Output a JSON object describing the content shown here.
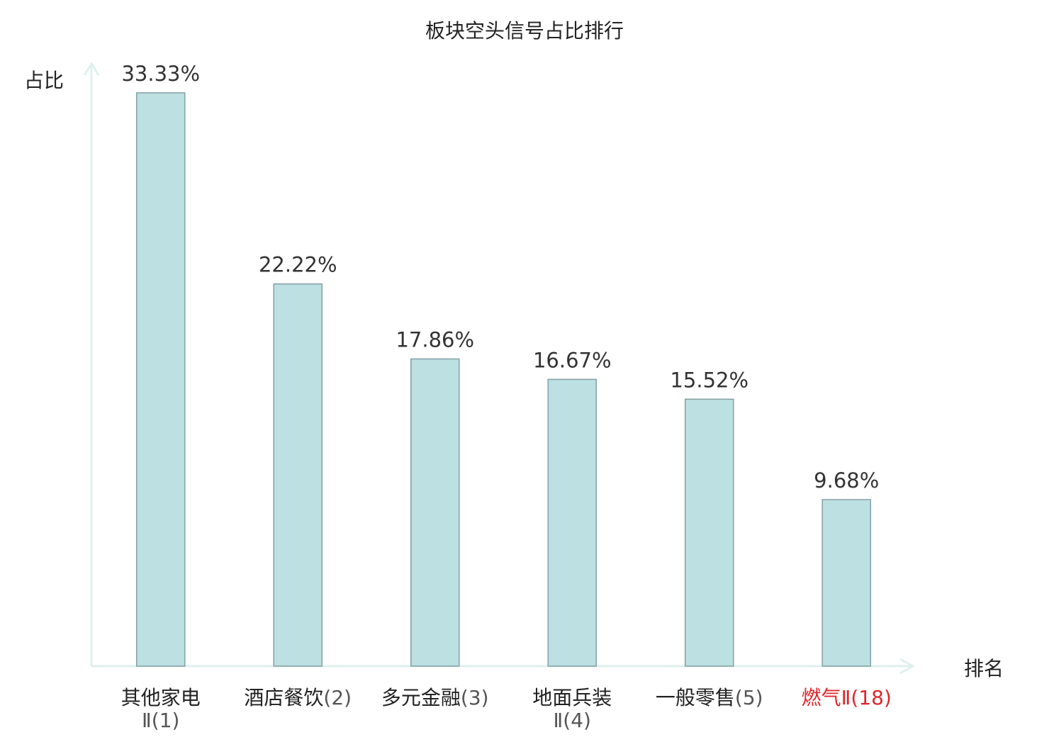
{
  "chart_data": {
    "type": "bar",
    "title": "板块空头信号占比排行",
    "xlabel": "排名",
    "ylabel": "占比",
    "ylim": [
      0,
      35
    ],
    "grid": false,
    "categories": [
      {
        "name": "其他家电",
        "suffix": "Ⅱ(1)",
        "wrap": true
      },
      {
        "name": "酒店餐饮",
        "suffix": "(2)",
        "wrap": false
      },
      {
        "name": "多元金融",
        "suffix": "(3)",
        "wrap": false
      },
      {
        "name": "地面兵装",
        "suffix": "Ⅱ(4)",
        "wrap": true
      },
      {
        "name": "一般零售",
        "suffix": "(5)",
        "wrap": false
      },
      {
        "name": "燃气",
        "suffix": "Ⅱ(18)",
        "wrap": false,
        "highlight": true
      }
    ],
    "values": [
      33.33,
      22.22,
      17.86,
      16.67,
      15.52,
      9.68
    ],
    "value_labels": [
      "33.33%",
      "22.22%",
      "17.86%",
      "16.67%",
      "15.52%",
      "9.68%"
    ],
    "colors": {
      "bar_fill": "#bde0e3",
      "bar_stroke": "#86a4a8",
      "axis": "#dff0ee",
      "highlight": "#e0262b"
    }
  }
}
